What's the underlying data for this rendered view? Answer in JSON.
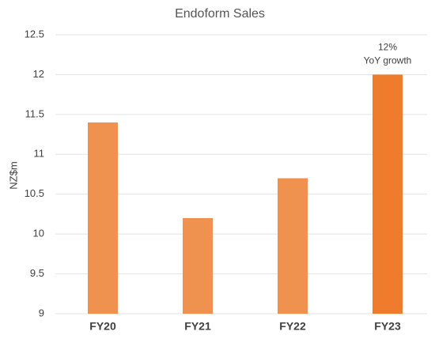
{
  "chart_data": {
    "type": "bar",
    "title": "Endoform Sales",
    "y_label": "NZ$m",
    "categories": [
      "FY20",
      "FY21",
      "FY22",
      "FY23"
    ],
    "values": [
      11.4,
      10.2,
      10.7,
      12.0
    ],
    "colors": [
      "#f0924f",
      "#f0924f",
      "#f0924f",
      "#ef7b2c"
    ],
    "ylim": [
      9,
      12.5
    ],
    "yticks": [
      9,
      9.5,
      10,
      10.5,
      11,
      11.5,
      12,
      12.5
    ],
    "grid": true,
    "annotation": [
      "12%",
      "YoY growth"
    ]
  }
}
